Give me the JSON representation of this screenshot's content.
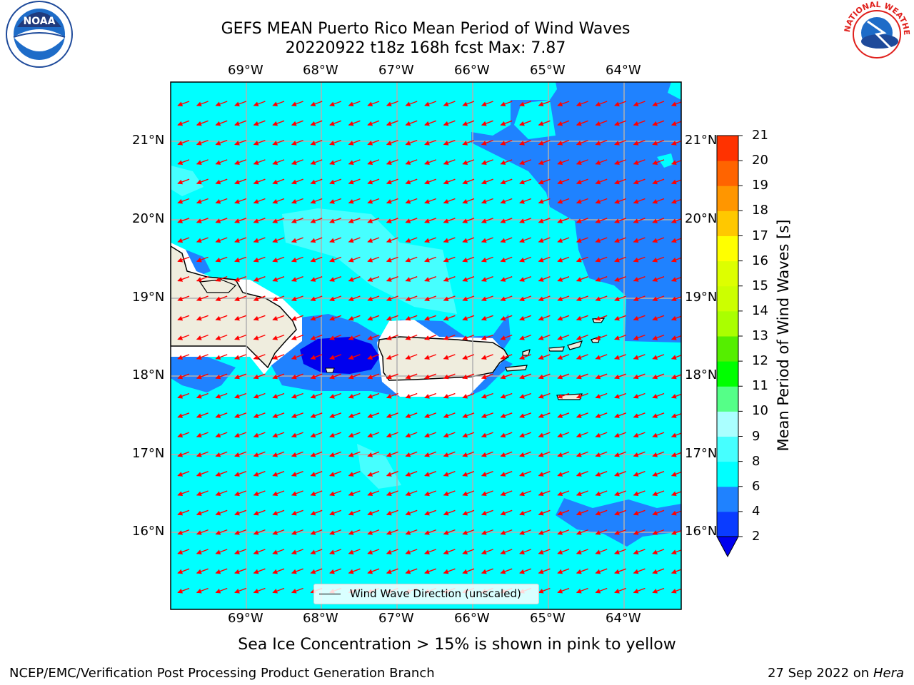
{
  "title": {
    "line1": "GEFS MEAN Puerto Rico Mean Period of Wind Waves",
    "line2": "20220922 t18z 168h fcst   Max: 7.87"
  },
  "axes": {
    "lon_ticks": [
      "69°W",
      "68°W",
      "67°W",
      "66°W",
      "65°W",
      "64°W"
    ],
    "lat_ticks": [
      "21°N",
      "20°N",
      "19°N",
      "18°N",
      "17°N",
      "16°N"
    ]
  },
  "colorbar": {
    "title": "Mean Period of Wind Waves [s]",
    "ticks": [
      "2",
      "4",
      "6",
      "8",
      "9",
      "10",
      "11",
      "12",
      "13",
      "14",
      "15",
      "16",
      "17",
      "18",
      "19",
      "20",
      "21"
    ],
    "colors": [
      "#0a3cff",
      "#1f82ff",
      "#00ffff",
      "#46ffff",
      "#aaffff",
      "#55ff88",
      "#00ff00",
      "#55ee00",
      "#aaff00",
      "#ccff00",
      "#ddff00",
      "#ffff00",
      "#ffc800",
      "#ff9600",
      "#ff6400",
      "#ff3200",
      "#ff0000"
    ],
    "underflow_color": "#0000ee"
  },
  "legend": {
    "label": "Wind Wave Direction (unscaled)"
  },
  "subtitle": "Sea Ice Concentration > 15% is shown in pink to yellow",
  "footer": {
    "left": "NCEP/EMC/Verification Post Processing Product Generation Branch",
    "right_date": "27 Sep 2022 on",
    "right_machine": "Hera"
  },
  "colors": {
    "sea": "#00ffff",
    "dark_blue": "#1f82ff",
    "deep_blue": "#0000ee",
    "light_cyan": "#46ffff",
    "land": "#efedde",
    "arrow": "#ff0000"
  },
  "logos": {
    "left": "NOAA",
    "right": "NATIONAL WEATHER SERVICE"
  }
}
